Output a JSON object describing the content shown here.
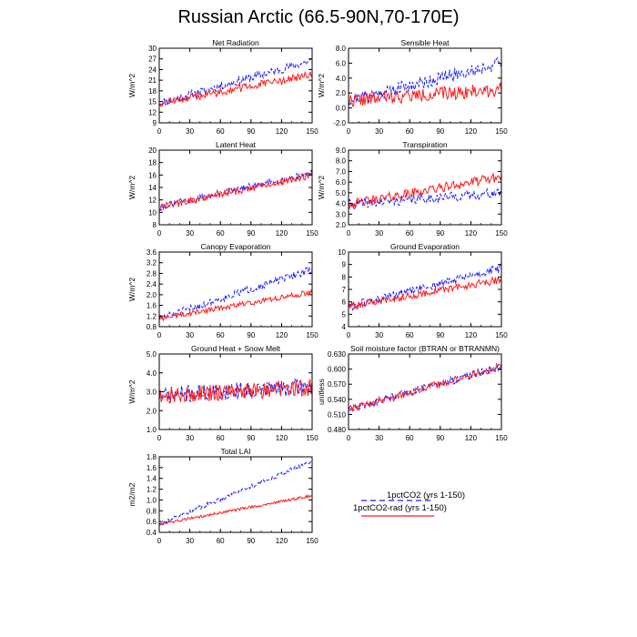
{
  "figure": {
    "title": "Russian Arctic (66.5-90N,70-170E)"
  },
  "legend": {
    "entries": [
      "1pctCO2 (yrs 1-150)",
      "1pctCO2-rad (yrs 1-150)"
    ],
    "colors": [
      "#1a1aff",
      "#ff1a1a"
    ]
  },
  "chart_data": [
    {
      "type": "line",
      "title": "Net Radiation",
      "ylabel": "W/m^2",
      "xlim": [
        0,
        150
      ],
      "ylim": [
        9,
        30
      ],
      "xticks": [
        0,
        30,
        60,
        90,
        120,
        150
      ],
      "yticks": [
        "9",
        "12",
        "15",
        "18",
        "21",
        "24",
        "27",
        "30"
      ],
      "series": [
        {
          "name": "1pctCO2 (yrs 1-150)",
          "color": "#1a1aff",
          "style": "dashed",
          "start": 14.5,
          "end": 26.5,
          "noise": 1.2,
          "seed": 11
        },
        {
          "name": "1pctCO2-rad (yrs 1-150)",
          "color": "#ff1a1a",
          "style": "solid",
          "start": 14.5,
          "end": 22.5,
          "noise": 1.1,
          "seed": 12
        }
      ]
    },
    {
      "type": "line",
      "title": "Sensible Heat",
      "ylabel": "W/m^2",
      "xlim": [
        0,
        150
      ],
      "ylim": [
        -2,
        8
      ],
      "xticks": [
        0,
        30,
        60,
        90,
        120,
        150
      ],
      "yticks": [
        "-2.0",
        "0.0",
        "2.0",
        "4.0",
        "6.0",
        "8.0"
      ],
      "series": [
        {
          "name": "1pctCO2 (yrs 1-150)",
          "color": "#1a1aff",
          "style": "dashed",
          "start": 1.0,
          "end": 6.0,
          "noise": 0.9,
          "seed": 21
        },
        {
          "name": "1pctCO2-rad (yrs 1-150)",
          "color": "#ff1a1a",
          "style": "solid",
          "start": 1.0,
          "end": 2.5,
          "noise": 0.9,
          "seed": 22
        }
      ]
    },
    {
      "type": "line",
      "title": "Latent Heat",
      "ylabel": "W/m^2",
      "xlim": [
        0,
        150
      ],
      "ylim": [
        8,
        20
      ],
      "xticks": [
        0,
        30,
        60,
        90,
        120,
        150
      ],
      "yticks": [
        "8",
        "10",
        "12",
        "14",
        "16",
        "18",
        "20"
      ],
      "series": [
        {
          "name": "1pctCO2 (yrs 1-150)",
          "color": "#1a1aff",
          "style": "dashed",
          "start": 10.8,
          "end": 16.3,
          "noise": 0.6,
          "seed": 31
        },
        {
          "name": "1pctCO2-rad (yrs 1-150)",
          "color": "#ff1a1a",
          "style": "solid",
          "start": 10.8,
          "end": 16.0,
          "noise": 0.6,
          "seed": 32
        }
      ]
    },
    {
      "type": "line",
      "title": "Transpiration",
      "ylabel": "W/m^2",
      "xlim": [
        0,
        150
      ],
      "ylim": [
        2,
        9
      ],
      "xticks": [
        0,
        30,
        60,
        90,
        120,
        150
      ],
      "yticks": [
        "2.0",
        "3.0",
        "4.0",
        "5.0",
        "6.0",
        "7.0",
        "8.0",
        "9.0"
      ],
      "series": [
        {
          "name": "1pctCO2 (yrs 1-150)",
          "color": "#1a1aff",
          "style": "dashed",
          "start": 3.9,
          "end": 5.0,
          "noise": 0.45,
          "seed": 41
        },
        {
          "name": "1pctCO2-rad (yrs 1-150)",
          "color": "#ff1a1a",
          "style": "solid",
          "start": 3.9,
          "end": 6.5,
          "noise": 0.45,
          "seed": 42
        }
      ]
    },
    {
      "type": "line",
      "title": "Canopy Evaporation",
      "ylabel": "W/m^2",
      "xlim": [
        0,
        150
      ],
      "ylim": [
        0.8,
        3.6
      ],
      "xticks": [
        0,
        30,
        60,
        90,
        120,
        150
      ],
      "yticks": [
        "0.8",
        "1.2",
        "1.6",
        "2.0",
        "2.4",
        "2.8",
        "3.2",
        "3.6"
      ],
      "series": [
        {
          "name": "1pctCO2 (yrs 1-150)",
          "color": "#1a1aff",
          "style": "dashed",
          "start": 1.1,
          "end": 2.95,
          "noise": 0.14,
          "seed": 51
        },
        {
          "name": "1pctCO2-rad (yrs 1-150)",
          "color": "#ff1a1a",
          "style": "solid",
          "start": 1.1,
          "end": 2.1,
          "noise": 0.1,
          "seed": 52
        }
      ]
    },
    {
      "type": "line",
      "title": "Ground Evaporation",
      "ylabel": "",
      "xlim": [
        0,
        150
      ],
      "ylim": [
        4,
        10
      ],
      "xticks": [
        0,
        30,
        60,
        90,
        120,
        150
      ],
      "yticks": [
        "4",
        "5",
        "6",
        "7",
        "8",
        "9",
        "10"
      ],
      "series": [
        {
          "name": "1pctCO2 (yrs 1-150)",
          "color": "#1a1aff",
          "style": "dashed",
          "start": 5.6,
          "end": 8.7,
          "noise": 0.35,
          "seed": 61
        },
        {
          "name": "1pctCO2-rad (yrs 1-150)",
          "color": "#ff1a1a",
          "style": "solid",
          "start": 5.6,
          "end": 7.8,
          "noise": 0.3,
          "seed": 62
        }
      ]
    },
    {
      "type": "line",
      "title": "Ground Heat + Snow Melt",
      "ylabel": "W/m^2",
      "xlim": [
        0,
        150
      ],
      "ylim": [
        1.0,
        5.0
      ],
      "xticks": [
        0,
        30,
        60,
        90,
        120,
        150
      ],
      "yticks": [
        "1.0",
        "2.0",
        "3.0",
        "4.0",
        "5.0"
      ],
      "series": [
        {
          "name": "1pctCO2 (yrs 1-150)",
          "color": "#1a1aff",
          "style": "dashed",
          "start": 2.8,
          "end": 3.3,
          "noise": 0.45,
          "seed": 71
        },
        {
          "name": "1pctCO2-rad (yrs 1-150)",
          "color": "#ff1a1a",
          "style": "solid",
          "start": 2.8,
          "end": 3.2,
          "noise": 0.45,
          "seed": 72
        }
      ]
    },
    {
      "type": "line",
      "title": "Soil moisture factor (BTRAN or BTRANMN)",
      "ylabel": "unitless",
      "xlim": [
        0,
        150
      ],
      "ylim": [
        0.48,
        0.63
      ],
      "xticks": [
        0,
        30,
        60,
        90,
        120,
        150
      ],
      "yticks": [
        "0.480",
        "0.510",
        "0.540",
        "0.570",
        "0.600",
        "0.630"
      ],
      "series": [
        {
          "name": "1pctCO2 (yrs 1-150)",
          "color": "#1a1aff",
          "style": "dashed",
          "start": 0.52,
          "end": 0.605,
          "noise": 0.008,
          "seed": 81
        },
        {
          "name": "1pctCO2-rad (yrs 1-150)",
          "color": "#ff1a1a",
          "style": "solid",
          "start": 0.52,
          "end": 0.605,
          "noise": 0.007,
          "seed": 82
        }
      ]
    },
    {
      "type": "line",
      "title": "Total LAI",
      "ylabel": "m2/m2",
      "xlim": [
        0,
        150
      ],
      "ylim": [
        0.4,
        1.8
      ],
      "xticks": [
        0,
        30,
        60,
        90,
        120,
        150
      ],
      "yticks": [
        "0.4",
        "0.6",
        "0.8",
        "1.0",
        "1.2",
        "1.4",
        "1.6",
        "1.8"
      ],
      "series": [
        {
          "name": "1pctCO2 (yrs 1-150)",
          "color": "#1a1aff",
          "style": "dashed",
          "start": 0.55,
          "end": 1.72,
          "noise": 0.04,
          "seed": 91
        },
        {
          "name": "1pctCO2-rad (yrs 1-150)",
          "color": "#ff1a1a",
          "style": "solid",
          "start": 0.55,
          "end": 1.08,
          "noise": 0.025,
          "seed": 92
        }
      ]
    }
  ]
}
